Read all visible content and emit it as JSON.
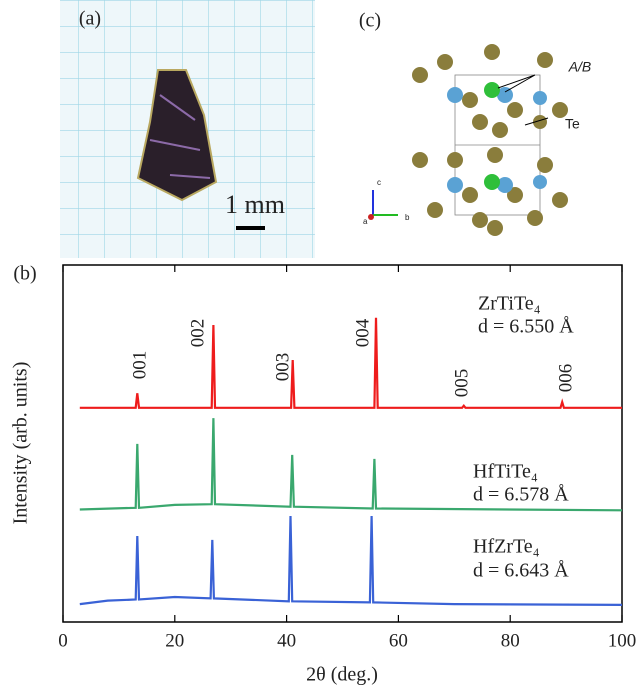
{
  "panels": {
    "a": {
      "label": "(a)",
      "scale_bar": "1 mm"
    },
    "c": {
      "label": "(c)",
      "site_labels": [
        "A/B",
        "Te"
      ],
      "axis_labels": [
        "c",
        "a",
        "b"
      ]
    }
  },
  "chart_data": {
    "type": "line",
    "panel_label": "(b)",
    "xlabel": "2θ (deg.)",
    "ylabel": "Intensity (arb. units)",
    "xlim": [
      0,
      100
    ],
    "xticks": [
      0,
      20,
      40,
      60,
      80,
      100
    ],
    "ylim": [
      0,
      100
    ],
    "annotations": [
      "001",
      "002",
      "003",
      "004",
      "005",
      "006"
    ],
    "series": [
      {
        "name": "ZrTiTe₄",
        "subtitle": "d = 6.550 Å",
        "color": "#ee1c1c",
        "x": [
          3,
          13.0,
          13.3,
          13.6,
          26.6,
          26.9,
          27.2,
          40.8,
          41.1,
          41.4,
          55.7,
          56.0,
          56.3,
          71.4,
          71.7,
          72.0,
          89.0,
          89.3,
          89.6,
          100
        ],
        "values": [
          60,
          60,
          64.1,
          60,
          60,
          83.2,
          60,
          60,
          73.4,
          60,
          60,
          85.2,
          60,
          60,
          60.6,
          60,
          60,
          61.6,
          60,
          60
        ]
      },
      {
        "name": "HfTiTe₄",
        "subtitle": "d = 6.578 Å",
        "color": "#3aa86e",
        "x": [
          3,
          13.0,
          13.3,
          13.6,
          20,
          26.6,
          26.9,
          27.2,
          40.7,
          41.0,
          41.3,
          55.4,
          55.7,
          56.0,
          100
        ],
        "values": [
          31.5,
          32,
          49.9,
          32,
          32.8,
          33,
          57.1,
          33,
          32.3,
          46.8,
          32.3,
          31.8,
          45.7,
          31.8,
          31.3
        ]
      },
      {
        "name": "HfZrTe₄",
        "subtitle": "d = 6.643 Å",
        "color": "#3a62d6",
        "x": [
          3,
          8,
          13.0,
          13.3,
          13.6,
          20,
          26.4,
          26.7,
          27.0,
          40.4,
          40.7,
          41.0,
          54.9,
          55.2,
          55.5,
          70,
          100
        ],
        "values": [
          5,
          6,
          6.3,
          24.1,
          6.3,
          7,
          6.6,
          23,
          6.6,
          5.8,
          29.7,
          5.8,
          5.5,
          29.7,
          5.5,
          5,
          4.8
        ]
      }
    ]
  }
}
